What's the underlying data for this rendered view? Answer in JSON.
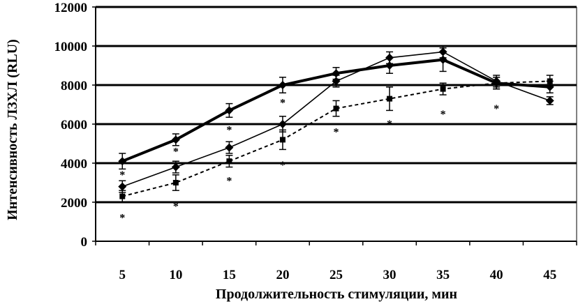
{
  "chart_data": {
    "type": "line",
    "xlabel": "Продолжительность стимуляции, мин",
    "ylabel": "Интенсивность ЛЗХЛ (RLU)",
    "x": [
      5,
      10,
      15,
      20,
      25,
      30,
      35,
      40,
      45
    ],
    "x_tick_labels": [
      "5",
      "10",
      "15",
      "20",
      "25",
      "30",
      "35",
      "40",
      "45"
    ],
    "ylim": [
      0,
      12000
    ],
    "y_ticks": [
      0,
      2000,
      4000,
      6000,
      8000,
      10000,
      12000
    ],
    "y_tick_labels": [
      "0",
      "2000",
      "4000",
      "6000",
      "8000",
      "10000",
      "12000"
    ],
    "grid": true,
    "series": [
      {
        "style": "thick-solid",
        "marker": "diamond",
        "values": [
          4100,
          5200,
          6700,
          8000,
          8600,
          9000,
          9300,
          8100,
          7900
        ],
        "errors": [
          400,
          300,
          350,
          400,
          300,
          400,
          600,
          300,
          300
        ]
      },
      {
        "style": "thin-solid",
        "marker": "diamond",
        "values": [
          2800,
          3800,
          4800,
          6000,
          8200,
          9400,
          9700,
          8200,
          7200
        ],
        "errors": [
          300,
          300,
          300,
          400,
          300,
          300,
          300,
          300,
          200
        ]
      },
      {
        "style": "dashed",
        "marker": "square",
        "values": [
          2300,
          3000,
          4100,
          5200,
          6800,
          7300,
          7800,
          8100,
          8200
        ],
        "errors": [
          300,
          400,
          300,
          500,
          400,
          600,
          300,
          300,
          300
        ]
      }
    ],
    "annotations": [
      {
        "x": 5,
        "y": 3500,
        "text": "*"
      },
      {
        "x": 10,
        "y": 4700,
        "text": "*"
      },
      {
        "x": 15,
        "y": 5800,
        "text": "*"
      },
      {
        "x": 20,
        "y": 7200,
        "text": "*"
      },
      {
        "x": 5,
        "y": 1300,
        "text": "*"
      },
      {
        "x": 10,
        "y": 1900,
        "text": "*"
      },
      {
        "x": 15,
        "y": 3200,
        "text": "*"
      },
      {
        "x": 20,
        "y": 4000,
        "text": "*"
      },
      {
        "x": 25,
        "y": 5700,
        "text": "*"
      },
      {
        "x": 30,
        "y": 6100,
        "text": "*"
      },
      {
        "x": 35,
        "y": 6600,
        "text": "*"
      },
      {
        "x": 40,
        "y": 6900,
        "text": "*"
      }
    ]
  }
}
